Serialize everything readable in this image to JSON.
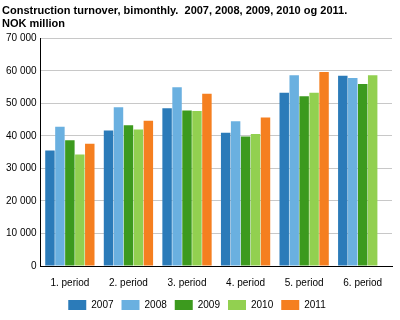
{
  "chart_data": {
    "type": "bar",
    "title": "Construction turnover, bimonthly.  2007, 2008, 2009, 2010 og 2011.",
    "subtitle": "NOK million",
    "categories": [
      "1. period",
      "2. period",
      "3. period",
      "4. period",
      "5. period",
      "6. period"
    ],
    "series": [
      {
        "name": "2007",
        "color": "#2b7bb9",
        "values": [
          35500,
          41700,
          48500,
          41000,
          53300,
          58500
        ]
      },
      {
        "name": "2008",
        "color": "#6ab0e0",
        "values": [
          42800,
          48800,
          55000,
          44500,
          58700,
          57800
        ]
      },
      {
        "name": "2009",
        "color": "#3c9a1e",
        "values": [
          38700,
          43300,
          47800,
          39800,
          52200,
          56000
        ]
      },
      {
        "name": "2010",
        "color": "#92d050",
        "values": [
          34300,
          42000,
          47700,
          40600,
          53300,
          58700
        ]
      },
      {
        "name": "2011",
        "color": "#f57f20",
        "values": [
          37600,
          44700,
          53000,
          45700,
          59700,
          null
        ]
      }
    ],
    "ylim": [
      0,
      70000
    ],
    "yticks": [
      0,
      {
        "value": 10000,
        "label": "10 000"
      },
      {
        "value": 20000,
        "label": "20 000"
      },
      {
        "value": 30000,
        "label": "30 000"
      },
      {
        "value": 40000,
        "label": "40 000"
      },
      {
        "value": 50000,
        "label": "50 000"
      },
      {
        "value": 60000,
        "label": "60 000"
      },
      {
        "value": 70000,
        "label": "70 000"
      }
    ],
    "grid": true,
    "legend": "bottom"
  }
}
